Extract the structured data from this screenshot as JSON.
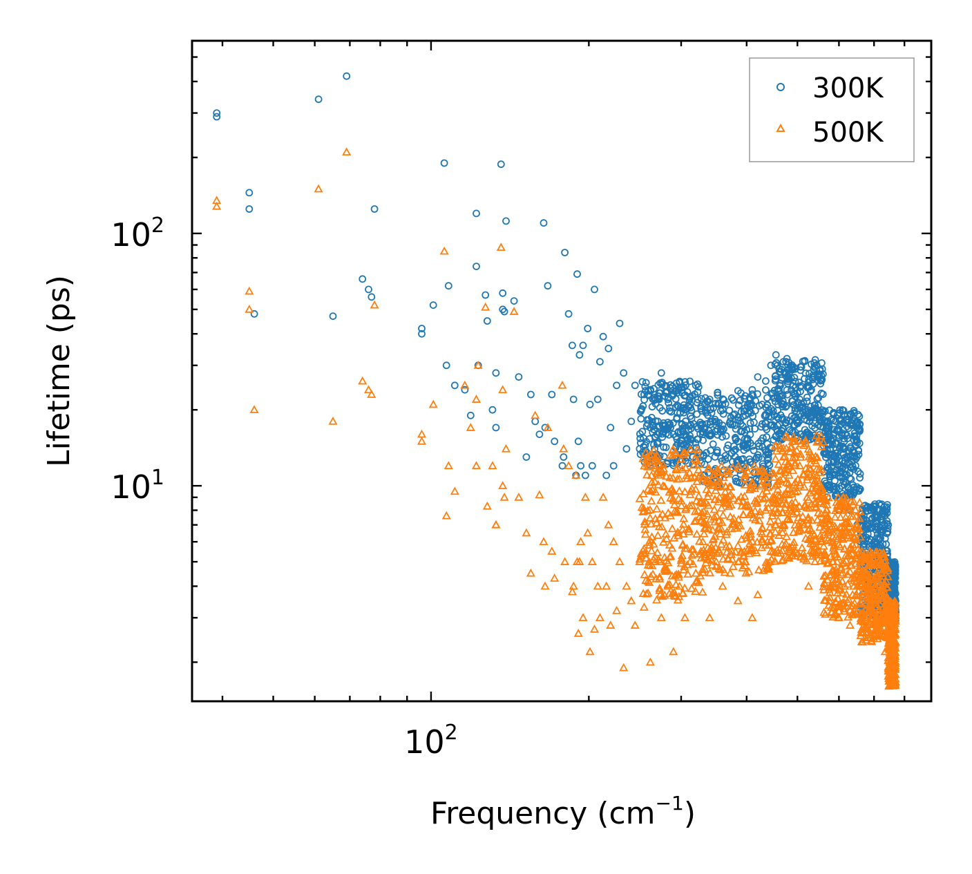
{
  "chart_data": {
    "type": "scatter",
    "xscale": "log",
    "yscale": "log",
    "xlabel": "Frequency (cm",
    "xlabel_sup": "−1",
    "xlabel_close": ")",
    "ylabel": "Lifetime (ps)",
    "xlim": [
      35,
      900
    ],
    "ylim": [
      1.4,
      580
    ],
    "x_major_ticks": [
      {
        "value": 100,
        "base": "10",
        "exp": "2"
      }
    ],
    "y_major_ticks": [
      {
        "value": 10,
        "base": "10",
        "exp": "1"
      },
      {
        "value": 100,
        "base": "10",
        "exp": "2"
      }
    ],
    "legend_position": "top-right",
    "series": [
      {
        "name": "300K",
        "marker": "circle",
        "color": "#1f77b4",
        "x": [
          39,
          39,
          45,
          45,
          46,
          61,
          65,
          69,
          74,
          76,
          77,
          78,
          96,
          96,
          101,
          106,
          107,
          108,
          111,
          116,
          119,
          122,
          122,
          123,
          127,
          128,
          131,
          133,
          133,
          136,
          137,
          137,
          138,
          139,
          144,
          147,
          152,
          155,
          158,
          161,
          164,
          165,
          167,
          170,
          172,
          178,
          179,
          180,
          183,
          186,
          187,
          189,
          190,
          191,
          192,
          193,
          195,
          197,
          199,
          201,
          203,
          205,
          208,
          210,
          213,
          216,
          218,
          220,
          223,
          226,
          229,
          233,
          236,
          241,
          245,
          250,
          255,
          262,
          268,
          275,
          283,
          290,
          298,
          305,
          312,
          320,
          330,
          340,
          350,
          360,
          372,
          385,
          398,
          410,
          420,
          428,
          435,
          445,
          455,
          470,
          482,
          495,
          505,
          515,
          525,
          540,
          555,
          568,
          585,
          600,
          615,
          630,
          650,
          660,
          675,
          690,
          705,
          720,
          735,
          745,
          760
        ],
        "y": [
          300,
          290,
          145,
          125,
          48,
          340,
          47,
          420,
          66,
          60,
          56,
          125,
          42,
          40,
          52,
          190,
          30,
          62,
          25,
          24,
          19,
          120,
          74,
          30,
          57,
          45,
          20,
          28,
          17,
          188,
          50,
          58,
          49,
          112,
          54,
          27,
          13,
          23,
          18,
          16,
          110,
          17,
          62,
          23,
          15,
          12,
          13,
          84,
          48,
          36,
          22,
          11,
          69,
          15,
          33,
          12,
          36,
          11,
          42,
          21,
          12,
          60,
          22,
          31,
          39,
          11,
          35,
          17,
          12,
          25,
          44,
          28,
          14,
          18,
          25,
          14,
          23,
          17,
          13,
          28,
          22,
          16,
          14,
          20,
          21,
          25,
          16,
          22,
          11,
          20,
          18,
          15,
          19,
          24,
          27,
          21,
          26,
          30,
          33,
          31,
          28,
          29,
          22,
          19,
          16,
          20,
          18,
          17,
          16,
          8,
          9,
          8,
          7,
          6,
          7,
          8,
          6,
          5,
          4,
          7,
          4
        ],
        "cluster": {
          "x_range": [
            250,
            720
          ],
          "bands": [
            {
              "x_from": 250,
              "x_to": 330,
              "y_from": 12,
              "y_to": 26
            },
            {
              "x_from": 330,
              "x_to": 450,
              "y_from": 10,
              "y_to": 24
            },
            {
              "x_from": 450,
              "x_to": 560,
              "y_from": 15,
              "y_to": 32
            },
            {
              "x_from": 560,
              "x_to": 660,
              "y_from": 9,
              "y_to": 20
            },
            {
              "x_from": 660,
              "x_to": 745,
              "y_from": 3,
              "y_to": 8.5
            },
            {
              "x_from": 745,
              "x_to": 770,
              "y_from": 2.9,
              "y_to": 5
            }
          ]
        }
      },
      {
        "name": "500K",
        "marker": "triangle",
        "color": "#ff7f0e",
        "x": [
          39,
          39,
          45,
          45,
          46,
          61,
          65,
          69,
          74,
          76,
          77,
          78,
          96,
          96,
          101,
          106,
          107,
          108,
          111,
          116,
          119,
          122,
          122,
          123,
          127,
          128,
          131,
          133,
          133,
          136,
          137,
          137,
          138,
          139,
          144,
          147,
          152,
          155,
          158,
          161,
          164,
          165,
          167,
          170,
          172,
          178,
          179,
          180,
          183,
          186,
          187,
          189,
          190,
          191,
          192,
          193,
          195,
          197,
          199,
          201,
          203,
          205,
          208,
          210,
          213,
          216,
          218,
          220,
          223,
          226,
          229,
          233,
          236,
          241,
          245,
          250,
          255,
          262,
          268,
          275,
          283,
          290,
          298,
          305,
          312,
          320,
          330,
          340,
          350,
          360,
          372,
          385,
          398,
          410,
          420,
          428,
          435,
          445,
          455,
          470,
          482,
          495,
          505,
          515,
          525,
          540,
          555,
          568,
          585,
          600,
          615,
          630,
          650,
          660,
          675,
          690,
          705,
          720,
          735,
          745,
          760
        ],
        "y": [
          135,
          128,
          59,
          50,
          20,
          150,
          18,
          210,
          26,
          24,
          23,
          52,
          16,
          15,
          21,
          85,
          7.6,
          12,
          9.5,
          25,
          17,
          22,
          12,
          30,
          51,
          8.3,
          12,
          7,
          7,
          88,
          10,
          24,
          9,
          14,
          49,
          9,
          6.5,
          4.5,
          19,
          9.2,
          6,
          4,
          17,
          5.5,
          4.3,
          25,
          14,
          5,
          12,
          3.8,
          4,
          11,
          5,
          2.6,
          5,
          6,
          3,
          9,
          6.5,
          2.2,
          5,
          2.7,
          4,
          3,
          9,
          4,
          7,
          2.8,
          6,
          3.2,
          5,
          1.9,
          4,
          3.5,
          2.8,
          5,
          3.3,
          2,
          5,
          3,
          4,
          2.2,
          4,
          3,
          5,
          4.5,
          6,
          3,
          5,
          4,
          4.5,
          3.5,
          5,
          3,
          3.7,
          6,
          8,
          5.5,
          7,
          9,
          11,
          15,
          12,
          7,
          4,
          5,
          6,
          8,
          5,
          3,
          4,
          2.8,
          4,
          5,
          3,
          2.5,
          4,
          3,
          2.2,
          3,
          2.1
        ],
        "cluster": {
          "x_range": [
            250,
            760
          ],
          "bands": [
            {
              "x_from": 250,
              "x_to": 330,
              "y_from": 3.5,
              "y_to": 14
            },
            {
              "x_from": 330,
              "x_to": 450,
              "y_from": 4.5,
              "y_to": 12
            },
            {
              "x_from": 450,
              "x_to": 560,
              "y_from": 5,
              "y_to": 16
            },
            {
              "x_from": 560,
              "x_to": 660,
              "y_from": 3,
              "y_to": 9
            },
            {
              "x_from": 660,
              "x_to": 745,
              "y_from": 2.4,
              "y_to": 5.5
            },
            {
              "x_from": 745,
              "x_to": 770,
              "y_from": 1.6,
              "y_to": 3.5
            }
          ]
        }
      }
    ]
  }
}
